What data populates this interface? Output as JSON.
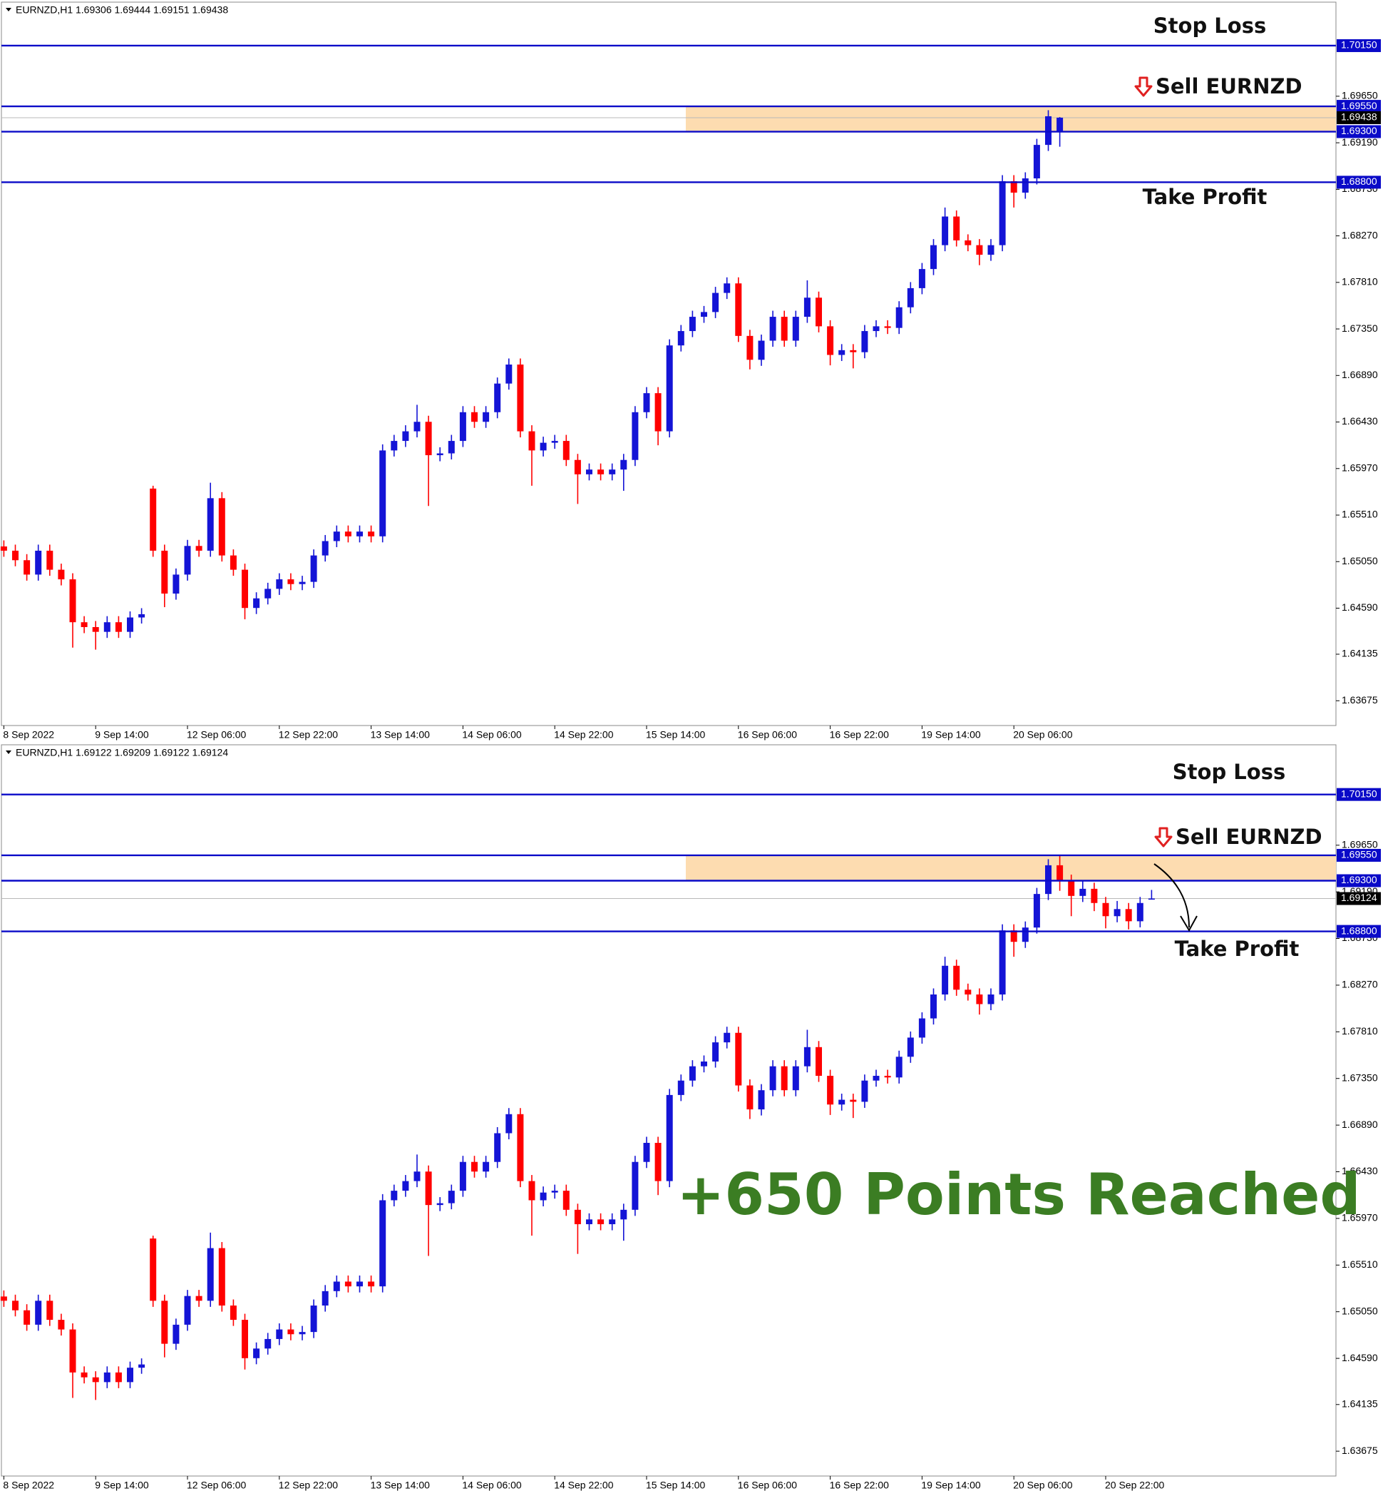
{
  "chart_data": [
    {
      "type": "candlestick",
      "header": "EURNZD,H1  1.69306 1.69444 1.69151 1.69438",
      "up_color": "#1414d6",
      "down_color": "#ff0000",
      "categories": [
        "8 Sep 2022",
        null,
        null,
        null,
        null,
        null,
        null,
        null,
        "9 Sep 14:00",
        null,
        null,
        null,
        null,
        null,
        null,
        null,
        "12 Sep 06:00",
        null,
        null,
        null,
        null,
        null,
        null,
        null,
        "12 Sep 22:00",
        null,
        null,
        null,
        null,
        null,
        null,
        null,
        "13 Sep 14:00",
        null,
        null,
        null,
        null,
        null,
        null,
        null,
        "14 Sep 06:00",
        null,
        null,
        null,
        null,
        null,
        null,
        null,
        "14 Sep 22:00",
        null,
        null,
        null,
        null,
        null,
        null,
        null,
        "15 Sep 14:00",
        null,
        null,
        null,
        null,
        null,
        null,
        null,
        "16 Sep 06:00",
        null,
        null,
        null,
        null,
        null,
        null,
        null,
        "16 Sep 22:00",
        null,
        null,
        null,
        null,
        null,
        null,
        null,
        "19 Sep 14:00",
        null,
        null,
        null,
        null,
        null,
        null,
        null,
        "20 Sep 06:00",
        null,
        null,
        null,
        null
      ],
      "open": [
        1.652,
        1.65158,
        1.65064,
        1.64922,
        1.65158,
        1.6497,
        1.64875,
        1.64451,
        1.64403,
        1.64356,
        1.64451,
        1.64356,
        1.64498,
        1.65772,
        1.65158,
        1.64734,
        1.64922,
        1.65205,
        1.65158,
        1.65677,
        1.65111,
        1.6497,
        1.64592,
        1.64687,
        1.64781,
        1.64875,
        1.64828,
        1.6485,
        1.65111,
        1.65253,
        1.65347,
        1.653,
        1.65347,
        1.653,
        1.66149,
        1.66243,
        1.66338,
        1.66432,
        1.66102,
        1.6612,
        1.66243,
        1.66527,
        1.66432,
        1.66527,
        1.6681,
        1.66998,
        1.66338,
        1.66149,
        1.66225,
        1.66243,
        1.66055,
        1.65913,
        1.6596,
        1.65913,
        1.6596,
        1.66055,
        1.66527,
        1.66715,
        1.66338,
        1.67187,
        1.67329,
        1.6747,
        1.67517,
        1.67706,
        1.678,
        1.67281,
        1.67045,
        1.67234,
        1.6747,
        1.67234,
        1.6747,
        1.67659,
        1.67376,
        1.67093,
        1.6714,
        1.6712,
        1.67329,
        1.67376,
        1.6736,
        1.67564,
        1.67753,
        1.67942,
        1.68178,
        1.68461,
        1.68225,
        1.68178,
        1.68083,
        1.68178,
        1.6881,
        1.68697,
        1.68838,
        1.69169,
        1.69306
      ],
      "high": [
        1.6526,
        1.65218,
        1.65124,
        1.65218,
        1.65218,
        1.6503,
        1.64935,
        1.64511,
        1.64463,
        1.64511,
        1.64511,
        1.64558,
        1.6459,
        1.658,
        1.65218,
        1.64982,
        1.65265,
        1.65265,
        1.6583,
        1.65737,
        1.65171,
        1.6503,
        1.64747,
        1.64841,
        1.64935,
        1.64935,
        1.6491,
        1.65171,
        1.65313,
        1.65407,
        1.65407,
        1.65407,
        1.65407,
        1.66209,
        1.66303,
        1.66398,
        1.666,
        1.66492,
        1.6618,
        1.66303,
        1.66587,
        1.66587,
        1.66587,
        1.6687,
        1.67058,
        1.67058,
        1.66398,
        1.66285,
        1.66303,
        1.66303,
        1.66115,
        1.6602,
        1.6602,
        1.6602,
        1.66115,
        1.66587,
        1.66775,
        1.66775,
        1.67247,
        1.67389,
        1.6753,
        1.67577,
        1.67766,
        1.6786,
        1.6786,
        1.67341,
        1.67294,
        1.6753,
        1.6753,
        1.6753,
        1.6783,
        1.67719,
        1.67436,
        1.672,
        1.672,
        1.67389,
        1.67436,
        1.67436,
        1.67624,
        1.67813,
        1.68002,
        1.68238,
        1.6855,
        1.68521,
        1.68285,
        1.68238,
        1.68238,
        1.6887,
        1.6887,
        1.68898,
        1.69229,
        1.69512,
        1.69444
      ],
      "low": [
        1.65098,
        1.65004,
        1.64862,
        1.64862,
        1.6491,
        1.64815,
        1.642,
        1.64343,
        1.6418,
        1.64296,
        1.64296,
        1.64296,
        1.64438,
        1.65098,
        1.646,
        1.64674,
        1.64862,
        1.65098,
        1.65098,
        1.65051,
        1.6491,
        1.6448,
        1.64532,
        1.64627,
        1.64721,
        1.64768,
        1.64768,
        1.6479,
        1.65051,
        1.65193,
        1.6524,
        1.6524,
        1.6524,
        1.6524,
        1.66089,
        1.66183,
        1.66278,
        1.656,
        1.66042,
        1.6606,
        1.66183,
        1.66372,
        1.66372,
        1.66467,
        1.6675,
        1.66278,
        1.658,
        1.66089,
        1.66165,
        1.65995,
        1.6562,
        1.65853,
        1.65853,
        1.65853,
        1.6575,
        1.65995,
        1.66467,
        1.662,
        1.66278,
        1.67127,
        1.67269,
        1.6741,
        1.67457,
        1.67646,
        1.67221,
        1.6695,
        1.66985,
        1.67174,
        1.67174,
        1.67174,
        1.6741,
        1.67316,
        1.6699,
        1.67033,
        1.6696,
        1.6706,
        1.67269,
        1.673,
        1.673,
        1.67504,
        1.67693,
        1.67882,
        1.68118,
        1.68165,
        1.68118,
        1.6798,
        1.68023,
        1.68118,
        1.6855,
        1.68637,
        1.68778,
        1.69109,
        1.69151
      ],
      "close": [
        1.65158,
        1.65064,
        1.64922,
        1.65158,
        1.6497,
        1.64875,
        1.64451,
        1.64403,
        1.64356,
        1.64451,
        1.64356,
        1.64498,
        1.6453,
        1.65158,
        1.64734,
        1.64922,
        1.65205,
        1.65158,
        1.65677,
        1.65111,
        1.6497,
        1.64592,
        1.64687,
        1.64781,
        1.64875,
        1.64828,
        1.6485,
        1.65111,
        1.65253,
        1.65347,
        1.653,
        1.65347,
        1.653,
        1.66149,
        1.66243,
        1.66338,
        1.66432,
        1.66102,
        1.6612,
        1.66243,
        1.66527,
        1.66432,
        1.66527,
        1.6681,
        1.66998,
        1.66338,
        1.66149,
        1.66225,
        1.66243,
        1.66055,
        1.65913,
        1.6596,
        1.65913,
        1.6596,
        1.66055,
        1.66527,
        1.66715,
        1.66338,
        1.67187,
        1.67329,
        1.6747,
        1.67517,
        1.67706,
        1.678,
        1.67281,
        1.67045,
        1.67234,
        1.6747,
        1.67234,
        1.6747,
        1.67659,
        1.67376,
        1.67093,
        1.6714,
        1.6712,
        1.67329,
        1.67376,
        1.6736,
        1.67564,
        1.67753,
        1.67942,
        1.68178,
        1.68461,
        1.68225,
        1.68178,
        1.68083,
        1.68178,
        1.6881,
        1.68697,
        1.68838,
        1.69169,
        1.69452,
        1.69438
      ],
      "ylim": [
        1.6343,
        1.7058
      ],
      "yticks": [
        {
          "value": 1.6965,
          "label": "1.69650"
        },
        {
          "value": 1.6919,
          "label": "1.69190"
        },
        {
          "value": 1.6873,
          "label": "1.68730"
        },
        {
          "value": 1.6827,
          "label": "1.68270"
        },
        {
          "value": 1.6781,
          "label": "1.67810"
        },
        {
          "value": 1.6735,
          "label": "1.67350"
        },
        {
          "value": 1.6689,
          "label": "1.66890"
        },
        {
          "value": 1.6643,
          "label": "1.66430"
        },
        {
          "value": 1.6597,
          "label": "1.65970"
        },
        {
          "value": 1.6551,
          "label": "1.65510"
        },
        {
          "value": 1.6505,
          "label": "1.65050"
        },
        {
          "value": 1.6459,
          "label": "1.64590"
        },
        1.64135,
        1.63675
      ],
      "levels": [
        {
          "value": 1.7015,
          "label": "1.70150"
        },
        {
          "value": 1.6955,
          "label": "1.69550"
        },
        {
          "value": 1.693,
          "label": "1.69300"
        },
        {
          "value": 1.688,
          "label": "1.68800"
        }
      ],
      "current": 1.69438,
      "annotations": {
        "stop_loss": "Stop Loss",
        "sell": "Sell EURNZD",
        "take_profit": "Take Profit"
      }
    },
    {
      "type": "candlestick",
      "header": "EURNZD,H1  1.69122 1.69209 1.69122 1.69124",
      "up_color": "#1414d6",
      "down_color": "#ff0000",
      "categories": [
        "8 Sep 2022",
        null,
        null,
        null,
        null,
        null,
        null,
        null,
        "9 Sep 14:00",
        null,
        null,
        null,
        null,
        null,
        null,
        null,
        "12 Sep 06:00",
        null,
        null,
        null,
        null,
        null,
        null,
        null,
        "12 Sep 22:00",
        null,
        null,
        null,
        null,
        null,
        null,
        null,
        "13 Sep 14:00",
        null,
        null,
        null,
        null,
        null,
        null,
        null,
        "14 Sep 06:00",
        null,
        null,
        null,
        null,
        null,
        null,
        null,
        "14 Sep 22:00",
        null,
        null,
        null,
        null,
        null,
        null,
        null,
        "15 Sep 14:00",
        null,
        null,
        null,
        null,
        null,
        null,
        null,
        "16 Sep 06:00",
        null,
        null,
        null,
        null,
        null,
        null,
        null,
        "16 Sep 22:00",
        null,
        null,
        null,
        null,
        null,
        null,
        null,
        "19 Sep 14:00",
        null,
        null,
        null,
        null,
        null,
        null,
        null,
        "20 Sep 06:00",
        null,
        null,
        null,
        null,
        null,
        null,
        null,
        "20 Sep 22:00",
        null,
        null,
        null,
        null
      ],
      "open": [
        1.652,
        1.65158,
        1.65064,
        1.64922,
        1.65158,
        1.6497,
        1.64875,
        1.64451,
        1.64403,
        1.64356,
        1.64451,
        1.64356,
        1.64498,
        1.65772,
        1.65158,
        1.64734,
        1.64922,
        1.65205,
        1.65158,
        1.65677,
        1.65111,
        1.6497,
        1.64592,
        1.64687,
        1.64781,
        1.64875,
        1.64828,
        1.6485,
        1.65111,
        1.65253,
        1.65347,
        1.653,
        1.65347,
        1.653,
        1.66149,
        1.66243,
        1.66338,
        1.66432,
        1.66102,
        1.6612,
        1.66243,
        1.66527,
        1.66432,
        1.66527,
        1.6681,
        1.66998,
        1.66338,
        1.66149,
        1.66225,
        1.66243,
        1.66055,
        1.65913,
        1.6596,
        1.65913,
        1.6596,
        1.66055,
        1.66527,
        1.66715,
        1.66338,
        1.67187,
        1.67329,
        1.6747,
        1.67517,
        1.67706,
        1.678,
        1.67281,
        1.67045,
        1.67234,
        1.6747,
        1.67234,
        1.6747,
        1.67659,
        1.67376,
        1.67093,
        1.6714,
        1.6712,
        1.67329,
        1.67376,
        1.6736,
        1.67564,
        1.67753,
        1.67942,
        1.68178,
        1.68461,
        1.68225,
        1.68178,
        1.68083,
        1.68178,
        1.6881,
        1.68697,
        1.68838,
        1.69169,
        1.69452,
        1.693,
        1.6915,
        1.6922,
        1.6908,
        1.6895,
        1.6902,
        1.689,
        1.69122
      ],
      "high": [
        1.6526,
        1.65218,
        1.65124,
        1.65218,
        1.65218,
        1.6503,
        1.64935,
        1.64511,
        1.64463,
        1.64511,
        1.64511,
        1.64558,
        1.6459,
        1.658,
        1.65218,
        1.64982,
        1.65265,
        1.65265,
        1.6583,
        1.65737,
        1.65171,
        1.6503,
        1.64747,
        1.64841,
        1.64935,
        1.64935,
        1.6491,
        1.65171,
        1.65313,
        1.65407,
        1.65407,
        1.65407,
        1.65407,
        1.66209,
        1.66303,
        1.66398,
        1.666,
        1.66492,
        1.6618,
        1.66303,
        1.66587,
        1.66587,
        1.66587,
        1.6687,
        1.67058,
        1.67058,
        1.66398,
        1.66285,
        1.66303,
        1.66303,
        1.66115,
        1.6602,
        1.6602,
        1.6602,
        1.66115,
        1.66587,
        1.66775,
        1.66775,
        1.67247,
        1.67389,
        1.6753,
        1.67577,
        1.67766,
        1.6786,
        1.6786,
        1.67341,
        1.67294,
        1.6753,
        1.6753,
        1.6753,
        1.6783,
        1.67719,
        1.67436,
        1.672,
        1.672,
        1.67389,
        1.67436,
        1.67436,
        1.67624,
        1.67813,
        1.68002,
        1.68238,
        1.6855,
        1.68521,
        1.68285,
        1.68238,
        1.68238,
        1.6887,
        1.6887,
        1.68898,
        1.69229,
        1.69512,
        1.6955,
        1.6936,
        1.693,
        1.6928,
        1.6914,
        1.691,
        1.6908,
        1.6914,
        1.69209
      ],
      "low": [
        1.65098,
        1.65004,
        1.64862,
        1.64862,
        1.6491,
        1.64815,
        1.642,
        1.64343,
        1.6418,
        1.64296,
        1.64296,
        1.64296,
        1.64438,
        1.65098,
        1.646,
        1.64674,
        1.64862,
        1.65098,
        1.65098,
        1.65051,
        1.6491,
        1.6448,
        1.64532,
        1.64627,
        1.64721,
        1.64768,
        1.64768,
        1.6479,
        1.65051,
        1.65193,
        1.6524,
        1.6524,
        1.6524,
        1.6524,
        1.66089,
        1.66183,
        1.66278,
        1.656,
        1.66042,
        1.6606,
        1.66183,
        1.66372,
        1.66372,
        1.66467,
        1.6675,
        1.66278,
        1.658,
        1.66089,
        1.66165,
        1.65995,
        1.6562,
        1.65853,
        1.65853,
        1.65853,
        1.6575,
        1.65995,
        1.66467,
        1.662,
        1.66278,
        1.67127,
        1.67269,
        1.6741,
        1.67457,
        1.67646,
        1.67221,
        1.6695,
        1.66985,
        1.67174,
        1.67174,
        1.67174,
        1.6741,
        1.67316,
        1.6699,
        1.67033,
        1.6696,
        1.6706,
        1.67269,
        1.673,
        1.673,
        1.67504,
        1.67693,
        1.67882,
        1.68118,
        1.68165,
        1.68118,
        1.6798,
        1.68023,
        1.68118,
        1.6855,
        1.68637,
        1.68778,
        1.69109,
        1.692,
        1.6895,
        1.6909,
        1.69,
        1.6883,
        1.6889,
        1.6882,
        1.6884,
        1.69122
      ],
      "close": [
        1.65158,
        1.65064,
        1.64922,
        1.65158,
        1.6497,
        1.64875,
        1.64451,
        1.64403,
        1.64356,
        1.64451,
        1.64356,
        1.64498,
        1.6453,
        1.65158,
        1.64734,
        1.64922,
        1.65205,
        1.65158,
        1.65677,
        1.65111,
        1.6497,
        1.64592,
        1.64687,
        1.64781,
        1.64875,
        1.64828,
        1.6485,
        1.65111,
        1.65253,
        1.65347,
        1.653,
        1.65347,
        1.653,
        1.66149,
        1.66243,
        1.66338,
        1.66432,
        1.66102,
        1.6612,
        1.66243,
        1.66527,
        1.66432,
        1.66527,
        1.6681,
        1.66998,
        1.66338,
        1.66149,
        1.66225,
        1.66243,
        1.66055,
        1.65913,
        1.6596,
        1.65913,
        1.6596,
        1.66055,
        1.66527,
        1.66715,
        1.66338,
        1.67187,
        1.67329,
        1.6747,
        1.67517,
        1.67706,
        1.678,
        1.67281,
        1.67045,
        1.67234,
        1.6747,
        1.67234,
        1.6747,
        1.67659,
        1.67376,
        1.67093,
        1.6714,
        1.6712,
        1.67329,
        1.67376,
        1.6736,
        1.67564,
        1.67753,
        1.67942,
        1.68178,
        1.68461,
        1.68225,
        1.68178,
        1.68083,
        1.68178,
        1.6881,
        1.68697,
        1.68838,
        1.69169,
        1.69452,
        1.693,
        1.6915,
        1.6922,
        1.6908,
        1.6895,
        1.6902,
        1.689,
        1.6908,
        1.69124
      ],
      "ylim": [
        1.6343,
        1.7064
      ],
      "yticks": [
        {
          "value": 1.6965,
          "label": "1.69650"
        },
        {
          "value": 1.6919,
          "label": "1.69190"
        },
        {
          "value": 1.6873,
          "label": "1.68730"
        },
        {
          "value": 1.6827,
          "label": "1.68270"
        },
        {
          "value": 1.6781,
          "label": "1.67810"
        },
        {
          "value": 1.6735,
          "label": "1.67350"
        },
        {
          "value": 1.6689,
          "label": "1.66890"
        },
        {
          "value": 1.6643,
          "label": "1.66430"
        },
        {
          "value": 1.6597,
          "label": "1.65970"
        },
        {
          "value": 1.6551,
          "label": "1.65510"
        },
        {
          "value": 1.6505,
          "label": "1.65050"
        },
        {
          "value": 1.6459,
          "label": "1.64590"
        },
        1.64135,
        1.63675
      ],
      "levels": [
        {
          "value": 1.7015,
          "label": "1.70150"
        },
        {
          "value": 1.6955,
          "label": "1.69550"
        },
        {
          "value": 1.693,
          "label": "1.69300"
        },
        {
          "value": 1.688,
          "label": "1.68800"
        }
      ],
      "current": 1.69124,
      "annotations": {
        "stop_loss": "Stop Loss",
        "sell": "Sell EURNZD",
        "take_profit": "Take Profit",
        "result": "+650 Points Reached"
      }
    }
  ]
}
